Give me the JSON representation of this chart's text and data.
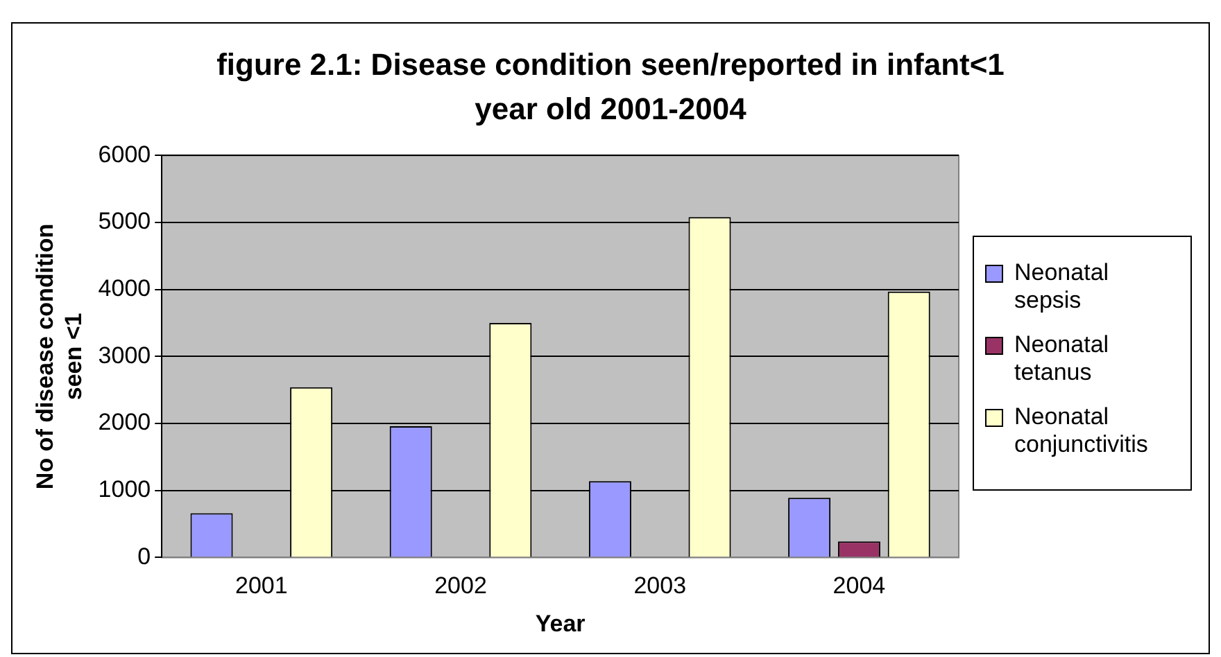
{
  "chart_data": {
    "type": "bar",
    "title": "figure 2.1: Disease condition seen/reported in infant<1 year old 2001-2004",
    "xlabel": "Year",
    "ylabel": "No of disease condition seen <1",
    "categories": [
      "2001",
      "2002",
      "2003",
      "2004"
    ],
    "series": [
      {
        "name": "Neonatal sepsis",
        "color": "#9999ff",
        "values": [
          660,
          1960,
          1140,
          890
        ]
      },
      {
        "name": "Neonatal tetanus",
        "color": "#993366",
        "values": [
          0,
          0,
          0,
          240
        ]
      },
      {
        "name": "Neonatal conjunctivitis",
        "color": "#ffffcc",
        "values": [
          2540,
          3500,
          5080,
          3970
        ]
      }
    ],
    "ylim": [
      0,
      6000
    ],
    "yticks": [
      0,
      1000,
      2000,
      3000,
      4000,
      5000,
      6000
    ],
    "grid": "y",
    "legend": "right"
  }
}
